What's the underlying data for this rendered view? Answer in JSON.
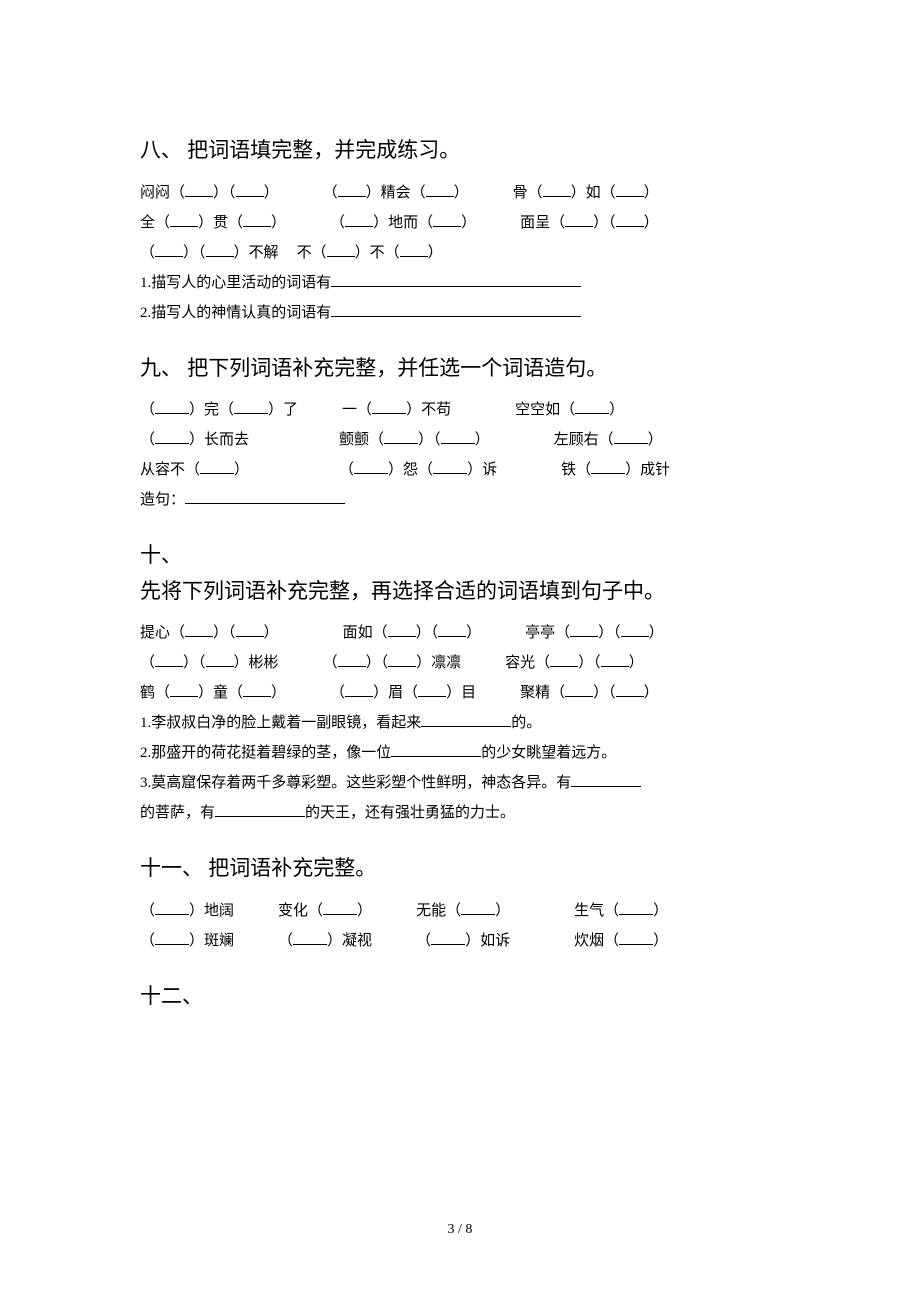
{
  "page_number": "3 / 8",
  "sections": {
    "s8": {
      "heading": "八、 把词语填完整，并完成练习。",
      "lines": [
        {
          "parts": [
            "闷闷",
            "（",
            "B",
            "）",
            "（",
            "B",
            "）",
            "GAP_MD",
            "（",
            "B",
            "）精会（",
            "B",
            "）",
            "GAP_MD",
            "骨（",
            "B",
            "）如（",
            "B",
            "）"
          ]
        },
        {
          "parts": [
            "全（",
            "B",
            "）贯（",
            "B",
            "）",
            "GAP_MD",
            "（",
            "B",
            "）地而（",
            "B",
            "）",
            "GAP_MD",
            "面呈（",
            "B",
            "）",
            "（",
            "B",
            "）"
          ]
        },
        {
          "parts": [
            "（",
            "B",
            "）",
            "（",
            "B",
            "）不解",
            "GAP_SM",
            "不（",
            "B",
            "）不（",
            "B",
            "）"
          ]
        }
      ],
      "q1": "1.描写人的心里活动的词语有",
      "q2": "2.描写人的神情认真的词语有"
    },
    "s9": {
      "heading": "九、 把下列词语补充完整，并任选一个词语造句。",
      "lines": [
        {
          "parts": [
            "（",
            "BM",
            "）完（",
            "BM",
            "）了",
            "GAP_MD",
            "一（",
            "BM",
            "）不苟",
            "GAP_LG",
            "空空如（",
            "BM",
            "）"
          ]
        },
        {
          "parts": [
            "（",
            "BM",
            "）长而去",
            "GAP_XL",
            "颤颤（",
            "BM",
            "）",
            "（",
            "BM",
            "）",
            "GAP_LG",
            "左顾右（",
            "BM",
            "）"
          ]
        },
        {
          "parts": [
            "从容不（",
            "BM",
            "）",
            "GAP_XL",
            "（",
            "BM",
            "）怨（",
            "BM",
            "）诉",
            "GAP_LG",
            "铁（",
            "BM",
            "）成针"
          ]
        }
      ],
      "sentence_label": "造句："
    },
    "s10": {
      "heading_num": "十、",
      "heading": "先将下列词语补充完整，再选择合适的词语填到句子中。",
      "lines": [
        {
          "parts": [
            "提心（",
            "B",
            "）",
            "（",
            "B",
            "）",
            "GAP_LG",
            "面如（",
            "B",
            "）",
            "（",
            "B",
            "）",
            "GAP_MD",
            "亭亭（",
            "B",
            "）",
            "（",
            "B",
            "）"
          ]
        },
        {
          "parts": [
            "（",
            "B",
            "）",
            "（",
            "B",
            "）彬彬",
            "GAP_MD",
            "（",
            "B",
            "）",
            "（",
            "B",
            "）凛凛",
            "GAP_MD",
            "容光（",
            "B",
            "）",
            "（",
            "B",
            "）"
          ]
        },
        {
          "parts": [
            "鹤（",
            "B",
            "）童（",
            "B",
            "）",
            "GAP_MD",
            "（",
            "B",
            "）眉（",
            "B",
            "）目",
            "GAP_MD",
            "聚精（",
            "B",
            "）",
            "（",
            "B",
            "）"
          ]
        }
      ],
      "q1_a": "1.李叔叔白净的脸上戴着一副眼镜，看起来",
      "q1_b": "的。",
      "q2_a": "2.那盛开的荷花挺着碧绿的茎，像一位",
      "q2_b": "的少女眺望着远方。",
      "q3_a": "3.莫高窟保存着两千多尊彩塑。这些彩塑个性鲜明，神态各异。有",
      "q3_b": "的菩萨，有",
      "q3_c": "的天王，还有强壮勇猛的力士。"
    },
    "s11": {
      "heading": "十一、 把词语补充完整。",
      "lines": [
        {
          "parts": [
            "（",
            "BM",
            "）地阔",
            "GAP_MD",
            "变化（",
            "BM",
            "）",
            "GAP_MD",
            "无能（",
            "BM",
            "）",
            "GAP_LG",
            "生气（",
            "BM",
            "）"
          ]
        },
        {
          "parts": [
            "（",
            "BM",
            "）斑斓",
            "GAP_MD",
            "（",
            "BM",
            "）凝视",
            "GAP_MD",
            "（",
            "BM",
            "）如诉",
            "GAP_LG",
            "炊烟（",
            "BM",
            "）"
          ]
        }
      ]
    },
    "s12": {
      "heading_num": "十二、"
    }
  }
}
